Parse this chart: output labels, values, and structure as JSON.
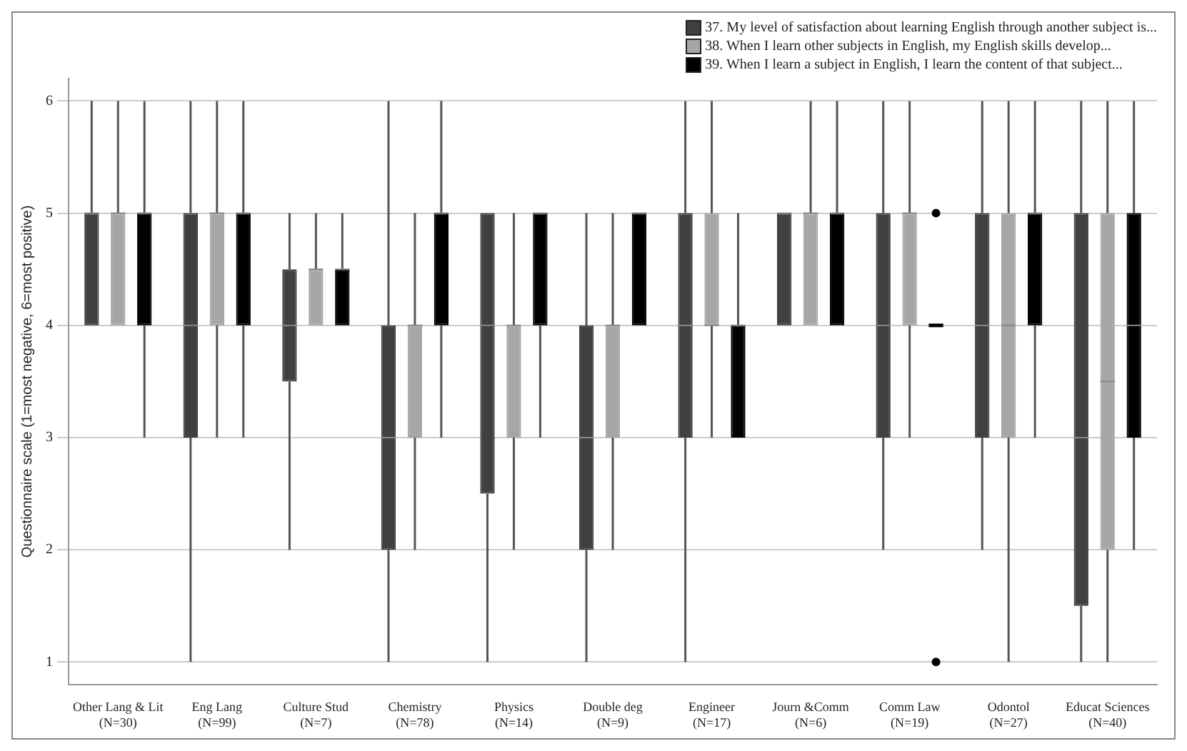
{
  "chart_data": {
    "type": "box",
    "ylabel": "Questionnaire scale (1=most negative, 6=most positive)",
    "categories": [
      "Other Lang & Lit (N=30)",
      "Eng Lang (N=99)",
      "Culture Stud (N=7)",
      "Chemistry (N=78)",
      "Physics (N=14)",
      "Double deg (N=9)",
      "Engineer (N=17)",
      "Journ &Comm (N=6)",
      "Comm Law (N=19)",
      "Odontol (N=27)",
      "Educat Sciences (N=40)"
    ],
    "ylim": [
      0.8,
      6.2
    ],
    "yticks": [
      1,
      2,
      3,
      4,
      5,
      6
    ],
    "grid": "y",
    "legend": "top right",
    "series": [
      {
        "name": "37. My level of satisfaction about learning English through another subject is...",
        "color": "#404040",
        "boxes": [
          {
            "low": 4,
            "q1": 4,
            "median": 5,
            "q3": 5,
            "high": 6
          },
          {
            "low": 1,
            "q1": 3,
            "median": 4,
            "q3": 5,
            "high": 6
          },
          {
            "low": 2,
            "q1": 3.5,
            "median": 4,
            "q3": 4.5,
            "high": 5
          },
          {
            "low": 1,
            "q1": 2,
            "median": 3,
            "q3": 4,
            "high": 6
          },
          {
            "low": 1,
            "q1": 2.5,
            "median": 4,
            "q3": 5,
            "high": 5
          },
          {
            "low": 1,
            "q1": 2,
            "median": 3,
            "q3": 4,
            "high": 5
          },
          {
            "low": 1,
            "q1": 3,
            "median": 4,
            "q3": 5,
            "high": 6
          },
          {
            "low": 4,
            "q1": 4,
            "median": 5,
            "q3": 5,
            "high": 5
          },
          {
            "low": 2,
            "q1": 3,
            "median": 4,
            "q3": 5,
            "high": 6
          },
          {
            "low": 2,
            "q1": 3,
            "median": 4,
            "q3": 5,
            "high": 6
          },
          {
            "low": 1,
            "q1": 1.5,
            "median": 3,
            "q3": 5,
            "high": 6
          }
        ]
      },
      {
        "name": "38. When I learn other subjects in English, my English skills develop...",
        "color": "#a6a6a6",
        "boxes": [
          {
            "low": 4,
            "q1": 4,
            "median": 5,
            "q3": 5,
            "high": 6
          },
          {
            "low": 3,
            "q1": 4,
            "median": 5,
            "q3": 5,
            "high": 6
          },
          {
            "low": 4,
            "q1": 4,
            "median": 4.5,
            "q3": 4.5,
            "high": 5
          },
          {
            "low": 2,
            "q1": 3,
            "median": 4,
            "q3": 4,
            "high": 5
          },
          {
            "low": 2,
            "q1": 3,
            "median": 4,
            "q3": 4,
            "high": 5
          },
          {
            "low": 2,
            "q1": 3,
            "median": 4,
            "q3": 4,
            "high": 5
          },
          {
            "low": 3,
            "q1": 4,
            "median": 4,
            "q3": 5,
            "high": 6
          },
          {
            "low": 4,
            "q1": 4,
            "median": 5,
            "q3": 5,
            "high": 6
          },
          {
            "low": 3,
            "q1": 4,
            "median": 5,
            "q3": 5,
            "high": 6
          },
          {
            "low": 1,
            "q1": 3,
            "median": 4,
            "q3": 5,
            "high": 6
          },
          {
            "low": 1,
            "q1": 2,
            "median": 3.5,
            "q3": 5,
            "high": 6
          }
        ]
      },
      {
        "name": "39. When I learn a subject in English, I learn the content of that subject...",
        "color": "#000000",
        "boxes": [
          {
            "low": 3,
            "q1": 4,
            "median": 5,
            "q3": 5,
            "high": 6
          },
          {
            "low": 3,
            "q1": 4,
            "median": 5,
            "q3": 5,
            "high": 6
          },
          {
            "low": 4,
            "q1": 4,
            "median": 4.5,
            "q3": 4.5,
            "high": 5
          },
          {
            "low": 3,
            "q1": 4,
            "median": 5,
            "q3": 5,
            "high": 6
          },
          {
            "low": 3,
            "q1": 4,
            "median": 5,
            "q3": 5,
            "high": 5
          },
          {
            "low": 4,
            "q1": 4,
            "median": 5,
            "q3": 5,
            "high": 5
          },
          {
            "low": 3,
            "q1": 3,
            "median": 4,
            "q3": 4,
            "high": 5
          },
          {
            "low": 4,
            "q1": 4,
            "median": 5,
            "q3": 5,
            "high": 6
          },
          {
            "low": 4,
            "q1": 4,
            "median": 4,
            "q3": 4,
            "high": 4,
            "outliers": [
              5,
              1
            ]
          },
          {
            "low": 3,
            "q1": 4,
            "median": 5,
            "q3": 5,
            "high": 6
          },
          {
            "low": 2,
            "q1": 3,
            "median": 4,
            "q3": 5,
            "high": 6
          }
        ]
      }
    ]
  }
}
